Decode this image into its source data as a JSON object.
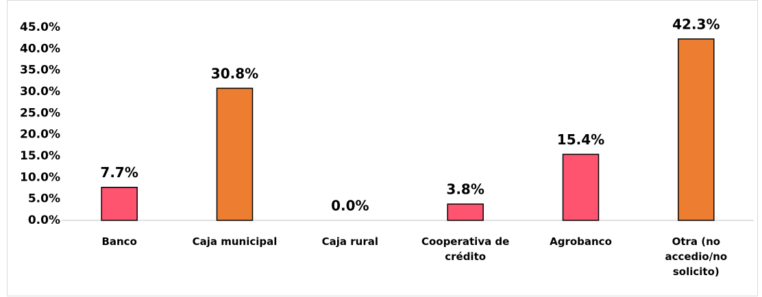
{
  "chart_data": {
    "type": "bar",
    "categories": [
      "Banco",
      "Caja municipal",
      "Caja rural",
      "Cooperativa de crédito",
      "Agrobanco",
      "Otra (no accedio/no solicito)"
    ],
    "values": [
      7.7,
      30.8,
      0.0,
      3.8,
      15.4,
      42.3
    ],
    "value_labels": [
      "7.7%",
      "30.8%",
      "0.0%",
      "3.8%",
      "15.4%",
      "42.3%"
    ],
    "colors": [
      "#ff5470",
      "#ed7d31",
      "#ff5470",
      "#ff5470",
      "#ff5470",
      "#ed7d31"
    ],
    "ylim": [
      0,
      45
    ],
    "yticks": [
      {
        "value": 0,
        "label": "0.0%"
      },
      {
        "value": 5,
        "label": "5.0%"
      },
      {
        "value": 10,
        "label": "10.0%"
      },
      {
        "value": 15,
        "label": "15.0%"
      },
      {
        "value": 20,
        "label": "20.0%"
      },
      {
        "value": 25,
        "label": "25.0%"
      },
      {
        "value": 30,
        "label": "30.0%"
      },
      {
        "value": 35,
        "label": "35.0%"
      },
      {
        "value": 40,
        "label": "40.0%"
      },
      {
        "value": 45,
        "label": "45.0%"
      }
    ],
    "grid": false
  }
}
